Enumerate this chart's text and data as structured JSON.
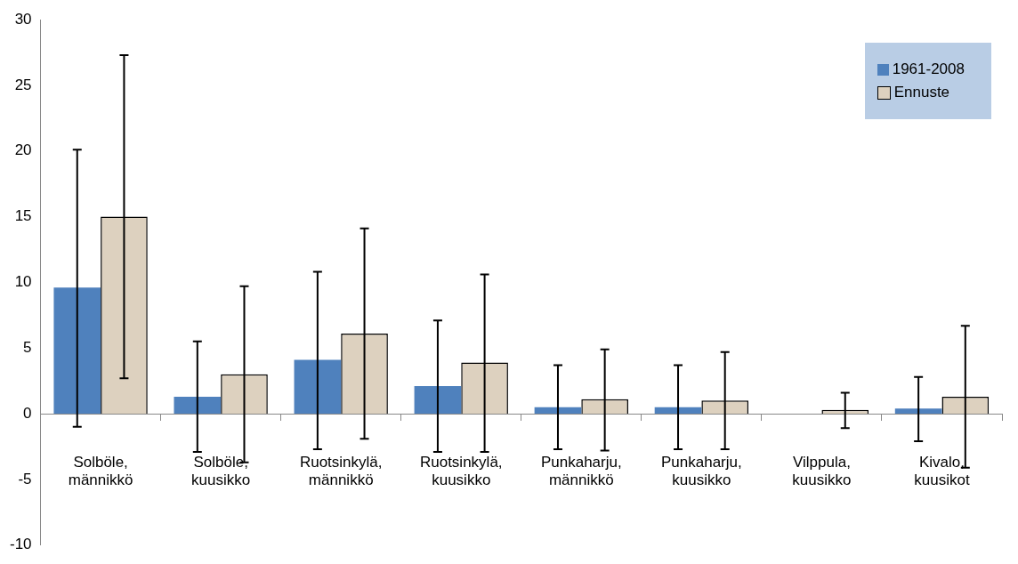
{
  "chart_data": {
    "type": "bar",
    "categories": [
      "Solböle, männikkö",
      "Solböle, kuusikko",
      "Ruotsinkylä, männikkö",
      "Ruotsinkylä, kuusikko",
      "Punkaharju, männikkö",
      "Punkaharju, kuusikko",
      "Vilppula, kuusikko",
      "Kivalo, kuusikot"
    ],
    "series": [
      {
        "name": "1961-2008",
        "color": "#4f81bd",
        "values": [
          9.6,
          1.3,
          4.1,
          2.1,
          0.5,
          0.5,
          null,
          0.4
        ],
        "errors": [
          [
            -1.0,
            20.1
          ],
          [
            -2.9,
            5.5
          ],
          [
            -2.7,
            10.8
          ],
          [
            -2.9,
            7.1
          ],
          [
            -2.7,
            3.7
          ],
          [
            -2.7,
            3.7
          ],
          null,
          [
            -2.1,
            2.8
          ]
        ]
      },
      {
        "name": "Ennuste",
        "color": "#ddd1bf",
        "values": [
          15.0,
          3.0,
          6.1,
          3.9,
          1.1,
          1.0,
          0.3,
          1.3
        ],
        "errors": [
          [
            2.7,
            27.3
          ],
          [
            -3.7,
            9.7
          ],
          [
            -1.9,
            14.1
          ],
          [
            -2.9,
            10.6
          ],
          [
            -2.8,
            4.9
          ],
          [
            -2.7,
            4.7
          ],
          [
            -1.1,
            1.6
          ],
          [
            -4.1,
            6.7
          ]
        ]
      }
    ],
    "ylim": [
      -10,
      30
    ],
    "yticks": [
      -10,
      -5,
      0,
      5,
      10,
      15,
      20,
      25,
      30
    ],
    "legend": "top right"
  }
}
